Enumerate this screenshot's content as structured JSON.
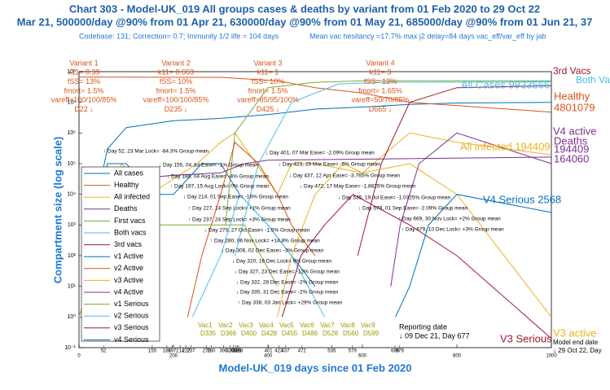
{
  "chart_data": {
    "type": "line",
    "title": "Chart 303 - Model-UK_019 All groups cases & deaths by variant from 01 Feb 2020 to 29 Oct 22",
    "subtitle": "Mar 21, 500000/day @90% from 01 Apr 21, 630000/day @90% from 01 May 21, 685000/day @90% from 01 Jun 21, 37",
    "info_left": "Codebase: 131; Correction= 0.7; Immunity 1/2 life = 104 days",
    "info_right": "Mean vac hesitancy =17.7% max j2 delay=84 days vac_eff/var_eff by jab",
    "x_label": "Model-UK_019 days since 01 Feb 2020",
    "y_label": "Compartment size (log scale)",
    "log_y": true,
    "xlim": [
      0,
      1000
    ],
    "xticks": [
      0,
      200,
      400,
      600,
      800,
      1000
    ],
    "ylim": [
      0.1,
      100000000
    ],
    "yticks": [
      {
        "value": 0.1,
        "label": "10⁻¹"
      },
      {
        "value": 1,
        "label": "10⁰"
      },
      {
        "value": 10,
        "label": "10¹"
      },
      {
        "value": 100,
        "label": "10²"
      },
      {
        "value": 1000,
        "label": "10³"
      },
      {
        "value": 10000,
        "label": "10⁴"
      },
      {
        "value": 100000,
        "label": "10⁵"
      },
      {
        "value": 1000000,
        "label": "10⁶"
      },
      {
        "value": 10000000,
        "label": "10⁷"
      },
      {
        "value": 100000000,
        "label": "10⁸"
      }
    ],
    "event_days": [
      52,
      155,
      186,
      197,
      214,
      227,
      237,
      270,
      280,
      306,
      320,
      327,
      332,
      335,
      338,
      401,
      423,
      437,
      472,
      535,
      579,
      669,
      679
    ],
    "variants": [
      [
        "Variant 1",
        "k11= 0.39",
        "fSS= 13%",
        "fmort= 1.5%",
        "vareff=100/100/85%",
        "D22 ↓"
      ],
      [
        "Variant 2",
        "k11= 0.663",
        "fSS= 10%",
        "fmort= 1.5%",
        "vareff=100/100/85%",
        "D235 ↓"
      ],
      [
        "Variant 3",
        "k11= 1",
        "fSS= 10%",
        "fmort= 1.5%",
        "vareff=85/95/100%",
        "D425 ↓"
      ],
      [
        "Variant 4",
        "k11= 3",
        "fSS= 13%",
        "fmort= 1.65%",
        "vareff=50/70/85%",
        "D665 ↓"
      ]
    ],
    "annotations": [
      "↑ Day 52, 23 Mar Lock= -84.3% Group mean",
      "↓ Day 155, 04 Jul Ease= -1% Group mean",
      "↓ Day 186, 04 Aug Ease= -4% Group mean",
      "↑ Day 197, 15 Aug Lock= 0% Group mean",
      "↓ Day 214, 01 Sep Ease= -16% Group mean",
      "↑ Day 227, 14 Sep Lock= +1% Group mean",
      "↑ Day 237, 24 Sep Lock= +3% Group mean",
      "↓ Day 270, 27 Oct Ease= -1.5% Group mean",
      "↑ Day 280, 06 Nov Lock= +14.8% Group mean",
      "↓ Day 306, 02 Dec Ease= -3% Group mean",
      "↓ Day 320, 16 Dec Lock= 0% Group mean",
      "↓ Day 327, 23 Dec Ease= -12% Group mean",
      "↓ Day 332, 28 Dec Ease= -2% Group mean",
      "↓ Day 335, 31 Dec Ease= -2% Group mean",
      "↑ Day 338, 03 Jan Lock= +29% Group mean",
      "↓ Day 401, 07 Mar Ease= -2.09% Group mean",
      "↓ Day 423, 29 Mar Ease= -5% Group mean",
      "↓ Day 437, 12 Apr Ease= -3.765% Group mean",
      "↓ Day 472, 17 May Ease= -1.8825% Group mean",
      "↓ Day 535, 19 Jul Ease= -1.0325% Group mean",
      "↓ Day 579, 01 Sep Ease= -2.09% Group mean",
      "↑ Day 669, 30 Nov Lock= +2% Group mean",
      "↑ Day 679, 10 Dec Lock= +3% Group mean"
    ],
    "vac_labels": [
      "Vac1",
      "Vac2",
      "Vac3",
      "Vac4",
      "Vac5",
      "Vac6",
      "Vac7",
      "Vac8",
      "Vac9"
    ],
    "vac_days": [
      "D335",
      "D366",
      "D400",
      "D428",
      "D455",
      "D486",
      "D528",
      "D560",
      "D599"
    ],
    "reporting": [
      "Reporting date",
      "↓ 09 Dec 21, Day 677"
    ],
    "model_end": [
      "Model end date",
      "↓ 29 Oct 22, Day"
    ],
    "right_labels": [
      {
        "text": "3rd Vacs",
        "color": "#a2142f"
      },
      {
        "text": "Both Vacs",
        "color": "#4dbeee"
      },
      {
        "text": "All Cases 9933566",
        "color": "#4dbeee"
      },
      {
        "text": "Healthy",
        "color": "#d95319"
      },
      {
        "text": "4801079",
        "color": "#d95319"
      },
      {
        "text": "V4 active",
        "color": "#7e2f8e"
      },
      {
        "text": "Deaths",
        "color": "#7e2f8e"
      },
      {
        "text": "194409",
        "color": "#7e2f8e"
      },
      {
        "text": "164060",
        "color": "#7e2f8e"
      },
      {
        "text": "All infected 194409",
        "color": "#edb120"
      },
      {
        "text": "V4 Serious 2568",
        "color": "#0072bd"
      },
      {
        "text": "V3 Serious",
        "color": "#a2142f"
      },
      {
        "text": "V3 active",
        "color": "#edb120"
      }
    ],
    "series": [
      {
        "name": "All cases",
        "color": "#0072bd",
        "x": [
          0,
          20,
          40,
          60,
          100,
          200,
          300,
          400,
          500,
          600,
          700,
          800,
          1000
        ],
        "values": [
          1,
          10,
          10000,
          300000,
          1500000,
          2500000,
          3000000,
          4000000,
          6000000,
          7000000,
          8500000,
          9500000,
          9933566
        ]
      },
      {
        "name": "Healthy",
        "color": "#d95319",
        "x": [
          0,
          300,
          420,
          500,
          600,
          700,
          1000
        ],
        "values": [
          67000000,
          65000000,
          50000000,
          30000000,
          20000000,
          10000000,
          4801079
        ]
      },
      {
        "name": "All infected",
        "color": "#edb120",
        "x": [
          0,
          40,
          60,
          90,
          150,
          250,
          300,
          330,
          420,
          450,
          500,
          600,
          700,
          800,
          1000
        ],
        "values": [
          1,
          100,
          10000,
          100000,
          10000,
          100000,
          500000,
          1000000,
          10000,
          100000,
          100000,
          50000,
          1000000,
          500000,
          194409
        ]
      },
      {
        "name": "Deaths",
        "color": "#7e2f8e",
        "x": [
          45,
          60,
          100,
          200,
          300,
          350,
          400,
          600,
          1000
        ],
        "values": [
          1,
          100,
          30000,
          42000,
          50000,
          100000,
          130000,
          140000,
          164060
        ]
      },
      {
        "name": "First vacs",
        "color": "#77ac30",
        "x": [
          310,
          330,
          400,
          500,
          600,
          1000
        ],
        "values": [
          1000,
          1000000,
          30000000,
          45000000,
          50000000,
          50000000
        ]
      },
      {
        "name": "Both vacs",
        "color": "#4dbeee",
        "x": [
          330,
          380,
          450,
          550,
          650,
          1000
        ],
        "values": [
          100,
          100000,
          10000000,
          40000000,
          45000000,
          46000000
        ]
      },
      {
        "name": "3rd vacs",
        "color": "#a2142f",
        "x": [
          590,
          640,
          700,
          800,
          1000
        ],
        "values": [
          100,
          100000,
          10000000,
          30000000,
          35000000
        ]
      },
      {
        "name": "v1 Active",
        "color": "#0072bd",
        "x": [
          20,
          60,
          100,
          160,
          200,
          260,
          300,
          340,
          400,
          450,
          500
        ],
        "values": [
          1,
          100000,
          100000,
          10000,
          10000,
          100000,
          100000,
          10000,
          1000,
          100,
          10
        ]
      },
      {
        "name": "v2 Active",
        "color": "#d95319",
        "x": [
          230,
          260,
          300,
          330,
          380,
          420,
          450,
          500
        ],
        "values": [
          1,
          100,
          10000,
          500000,
          100000,
          10000,
          1000,
          100
        ]
      },
      {
        "name": "v3 Active",
        "color": "#edb120",
        "x": [
          420,
          450,
          500,
          560,
          600,
          700,
          800,
          1000
        ],
        "values": [
          1,
          100,
          10000,
          100000,
          50000,
          100000,
          10000,
          1
        ]
      },
      {
        "name": "v4 Active",
        "color": "#7e2f8e",
        "x": [
          660,
          680,
          720,
          800,
          1000
        ],
        "values": [
          10,
          1000,
          100000,
          1000000,
          100000
        ]
      },
      {
        "name": "v1 Serious",
        "color": "#77ac30",
        "x": [
          25,
          60,
          100,
          160,
          250,
          350,
          420
        ],
        "values": [
          1,
          10000,
          10000,
          1000,
          1000,
          1000,
          10
        ]
      },
      {
        "name": "v2 Serious",
        "color": "#4dbeee",
        "x": [
          240,
          300,
          340,
          400,
          450,
          520
        ],
        "values": [
          1,
          100,
          10000,
          1000,
          100,
          1
        ]
      },
      {
        "name": "v3 Serious",
        "color": "#a2142f",
        "x": [
          430,
          470,
          520,
          580,
          700,
          800,
          1000
        ],
        "values": [
          1,
          100,
          1000,
          10000,
          1000,
          100,
          0.2
        ]
      },
      {
        "name": "v4 Serious",
        "color": "#0072bd",
        "x": [
          670,
          700,
          740,
          800,
          1000
        ],
        "values": [
          1,
          10,
          1000,
          10000,
          2568
        ]
      }
    ]
  }
}
